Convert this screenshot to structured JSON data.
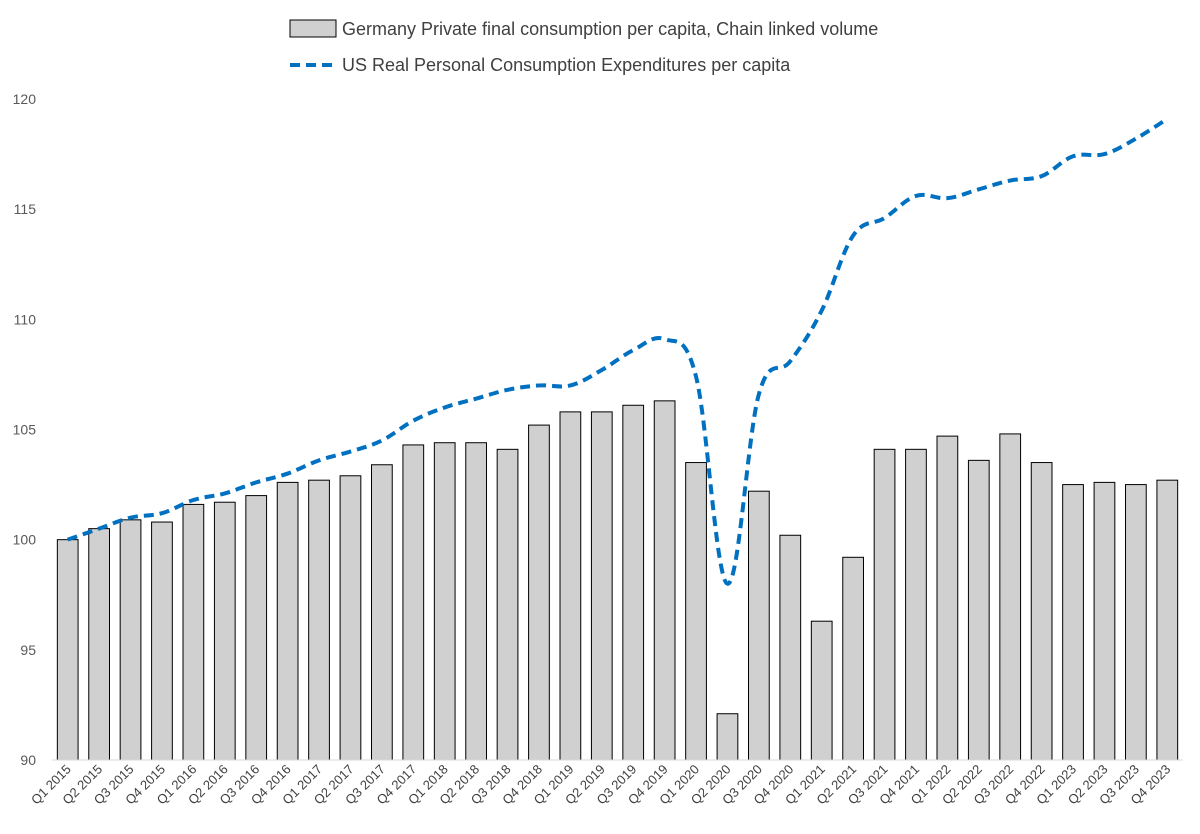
{
  "chart_data": {
    "type": "bar",
    "categories": [
      "Q1 2015",
      "Q2 2015",
      "Q3 2015",
      "Q4 2015",
      "Q1 2016",
      "Q2 2016",
      "Q3 2016",
      "Q4 2016",
      "Q1 2017",
      "Q2 2017",
      "Q3 2017",
      "Q4 2017",
      "Q1 2018",
      "Q2 2018",
      "Q3 2018",
      "Q4 2018",
      "Q1 2019",
      "Q2 2019",
      "Q3 2019",
      "Q4 2019",
      "Q1 2020",
      "Q2 2020",
      "Q3 2020",
      "Q4 2020",
      "Q1 2021",
      "Q2 2021",
      "Q3 2021",
      "Q4 2021",
      "Q1 2022",
      "Q2 2022",
      "Q3 2022",
      "Q4 2022",
      "Q1 2023",
      "Q2 2023",
      "Q3 2023",
      "Q4 2023"
    ],
    "series": [
      {
        "name": "Germany Private final consumption per capita, Chain linked volume",
        "type": "bar",
        "color": "#d0d0d0",
        "stroke": "#000000",
        "values": [
          100.0,
          100.5,
          100.9,
          100.8,
          101.6,
          101.7,
          102.0,
          102.6,
          102.7,
          102.9,
          103.4,
          104.3,
          104.4,
          104.4,
          104.1,
          105.2,
          105.8,
          105.8,
          106.1,
          106.3,
          103.5,
          92.1,
          102.2,
          100.2,
          96.3,
          99.2,
          104.1,
          104.1,
          104.7,
          103.6,
          104.8,
          103.5,
          102.5,
          102.6,
          102.5,
          102.7
        ]
      },
      {
        "name": "US Real Personal Consumption Expenditures per capita",
        "type": "line",
        "style": "dashed",
        "color": "#0070c0",
        "values": [
          100.0,
          100.5,
          101.0,
          101.2,
          101.8,
          102.1,
          102.6,
          103.0,
          103.6,
          104.0,
          104.5,
          105.4,
          106.0,
          106.4,
          106.8,
          107.0,
          107.0,
          107.7,
          108.6,
          109.1,
          107.4,
          98.0,
          106.6,
          108.1,
          110.4,
          113.8,
          114.6,
          115.6,
          115.5,
          115.9,
          116.3,
          116.5,
          117.4,
          117.5,
          118.2,
          119.1
        ]
      }
    ],
    "ylim": [
      90,
      120
    ],
    "yticks": [
      90,
      95,
      100,
      105,
      110,
      115,
      120
    ],
    "grid": false,
    "legend": "top-center"
  }
}
